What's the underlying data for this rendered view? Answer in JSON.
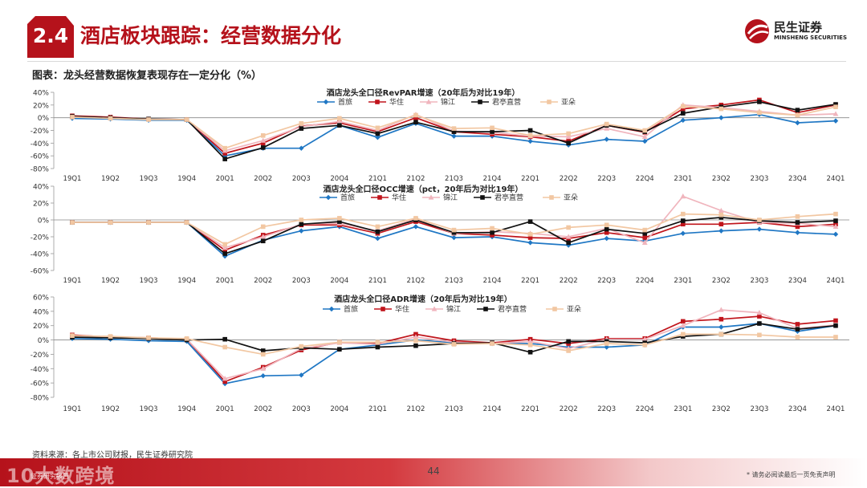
{
  "header": {
    "badge": "2.4",
    "title": "酒店板块跟踪：经营数据分化",
    "logo_cn": "民生证券",
    "logo_en": "MINSHENG SECURITIES",
    "brand_color": "#b5121b"
  },
  "figure": {
    "caption": "图表：龙头经营数据恢复表现存在一定分化（%）"
  },
  "source": "资料来源：各上市公司财报，民生证券研究院",
  "footer": {
    "page": "44",
    "disclaimer": "* 请务必阅读最后一页免责声明",
    "watermark": "大数跨境",
    "watermark_sub": "证券研究报告"
  },
  "chart_data": [
    {
      "type": "line",
      "title": "酒店龙头全口径RevPAR增速（20年后为对比19年）",
      "categories": [
        "19Q1",
        "19Q2",
        "19Q3",
        "19Q4",
        "20Q1",
        "20Q2",
        "20Q3",
        "20Q4",
        "21Q1",
        "21Q2",
        "21Q3",
        "21Q4",
        "22Q1",
        "22Q2",
        "22Q3",
        "22Q4",
        "23Q1",
        "23Q2",
        "23Q3",
        "23Q4",
        "24Q1"
      ],
      "ylim": [
        -80,
        40
      ],
      "yticks": [
        "40%",
        "20%",
        "0%",
        "-20%",
        "-40%",
        "-60%",
        "-80%"
      ],
      "series": [
        {
          "name": "首旅",
          "color": "#1f77c4",
          "marker": "diamond",
          "values": [
            -1,
            -2,
            -4,
            -4,
            -60,
            -48,
            -48,
            -12,
            -31,
            -9,
            -29,
            -29,
            -37,
            -43,
            -34,
            -37,
            -4,
            0,
            5,
            -8,
            -5
          ]
        },
        {
          "name": "华住",
          "color": "#c0141b",
          "marker": "square",
          "values": [
            3,
            1,
            -2,
            -3,
            -56,
            -40,
            -13,
            -8,
            -22,
            0,
            -22,
            -26,
            -30,
            -37,
            -12,
            -23,
            14,
            20,
            28,
            8,
            20
          ]
        },
        {
          "name": "锦江",
          "color": "#f0b5bd",
          "marker": "triangle",
          "values": [
            1,
            0,
            -2,
            -3,
            -52,
            -36,
            -14,
            -6,
            -20,
            5,
            -21,
            -23,
            -29,
            -30,
            -17,
            -30,
            20,
            16,
            10,
            4,
            6
          ]
        },
        {
          "name": "君亭直营",
          "color": "#111111",
          "marker": "square",
          "values": [
            2,
            0,
            -2,
            -3,
            -65,
            -47,
            -17,
            -12,
            -25,
            -7,
            -22,
            -22,
            -20,
            -40,
            -12,
            -22,
            7,
            17,
            25,
            12,
            21
          ]
        },
        {
          "name": "亚朵",
          "color": "#f2c7a2",
          "marker": "square",
          "values": [
            1,
            -1,
            -3,
            -3,
            -48,
            -28,
            -9,
            -1,
            -16,
            4,
            -17,
            -16,
            -28,
            -25,
            -10,
            -20,
            18,
            14,
            8,
            4,
            17
          ]
        }
      ]
    },
    {
      "type": "line",
      "title": "酒店龙头全口径OCC增速（pct，20年后为对比19年）",
      "categories": [
        "19Q1",
        "19Q2",
        "19Q3",
        "19Q4",
        "20Q1",
        "20Q2",
        "20Q3",
        "20Q4",
        "21Q1",
        "21Q2",
        "21Q3",
        "21Q4",
        "22Q1",
        "22Q2",
        "22Q3",
        "22Q4",
        "23Q1",
        "23Q2",
        "23Q3",
        "23Q4",
        "24Q1"
      ],
      "ylim": [
        -60,
        40
      ],
      "yticks": [
        "40%",
        "20%",
        "0%",
        "-20%",
        "-40%",
        "-60%"
      ],
      "series": [
        {
          "name": "首旅",
          "color": "#1f77c4",
          "marker": "diamond",
          "values": [
            -3,
            -3,
            -3,
            -3,
            -43,
            -24,
            -13,
            -8,
            -22,
            -8,
            -21,
            -20,
            -27,
            -30,
            -22,
            -25,
            -16,
            -13,
            -11,
            -15,
            -17
          ]
        },
        {
          "name": "华住",
          "color": "#c0141b",
          "marker": "square",
          "values": [
            -3,
            -3,
            -3,
            -3,
            -36,
            -18,
            -6,
            -6,
            -16,
            -2,
            -16,
            -18,
            -21,
            -22,
            -15,
            -21,
            -5,
            -5,
            -3,
            -8,
            -5
          ]
        },
        {
          "name": "锦江",
          "color": "#f0b5bd",
          "marker": "triangle",
          "values": [
            -3,
            -3,
            -3,
            -3,
            -33,
            -20,
            -5,
            -4,
            -13,
            1,
            -16,
            -14,
            -16,
            -20,
            -10,
            -27,
            28,
            11,
            -3,
            -4,
            -8
          ]
        },
        {
          "name": "君亭直营",
          "color": "#111111",
          "marker": "square",
          "values": [
            -3,
            -3,
            -3,
            -3,
            -40,
            -25,
            -5,
            -2,
            -14,
            0,
            -15,
            -15,
            -2,
            -27,
            -11,
            -16,
            -1,
            3,
            -1,
            -3,
            -1
          ]
        },
        {
          "name": "亚朵",
          "color": "#f2c7a2",
          "marker": "square",
          "values": [
            -3,
            -3,
            -3,
            -3,
            -29,
            -8,
            0,
            2,
            -8,
            2,
            -12,
            -10,
            -17,
            -9,
            -6,
            -12,
            7,
            6,
            0,
            4,
            7
          ]
        }
      ]
    },
    {
      "type": "line",
      "title": "酒店龙头全口径ADR增速（20年后为对比19年）",
      "categories": [
        "19Q1",
        "19Q2",
        "19Q3",
        "19Q4",
        "20Q1",
        "20Q2",
        "20Q3",
        "20Q4",
        "21Q1",
        "21Q2",
        "21Q3",
        "21Q4",
        "22Q1",
        "22Q2",
        "22Q3",
        "22Q4",
        "23Q1",
        "23Q2",
        "23Q3",
        "23Q4",
        "24Q1"
      ],
      "ylim": [
        -80,
        60
      ],
      "yticks": [
        "60%",
        "40%",
        "20%",
        "0%",
        "-20%",
        "-40%",
        "-60%",
        "-80%"
      ],
      "series": [
        {
          "name": "首旅",
          "color": "#1f77c4",
          "marker": "diamond",
          "values": [
            2,
            1,
            -1,
            -2,
            -61,
            -50,
            -49,
            -13,
            -7,
            0,
            -4,
            -5,
            -5,
            -10,
            -10,
            -7,
            18,
            18,
            23,
            12,
            20
          ]
        },
        {
          "name": "华住",
          "color": "#c0141b",
          "marker": "square",
          "values": [
            7,
            4,
            3,
            1,
            -58,
            -38,
            -14,
            -3,
            -5,
            8,
            -1,
            -4,
            1,
            -5,
            2,
            2,
            26,
            29,
            33,
            22,
            27
          ]
        },
        {
          "name": "锦江",
          "color": "#f0b5bd",
          "marker": "triangle",
          "values": [
            6,
            4,
            2,
            1,
            -54,
            -40,
            -12,
            -4,
            -6,
            4,
            -3,
            -5,
            -2,
            -12,
            1,
            1,
            20,
            42,
            38,
            16,
            21
          ]
        },
        {
          "name": "君亭直营",
          "color": "#111111",
          "marker": "square",
          "values": [
            4,
            3,
            2,
            0,
            1,
            -15,
            -11,
            -13,
            -10,
            -8,
            -5,
            -4,
            -17,
            -2,
            -2,
            -4,
            5,
            8,
            23,
            15,
            20
          ]
        },
        {
          "name": "亚朵",
          "color": "#f2c7a2",
          "marker": "square",
          "values": [
            6,
            5,
            3,
            2,
            -10,
            -20,
            -9,
            -3,
            -3,
            -1,
            -6,
            -5,
            -7,
            -15,
            -5,
            -7,
            8,
            8,
            7,
            4,
            4
          ]
        }
      ]
    }
  ]
}
